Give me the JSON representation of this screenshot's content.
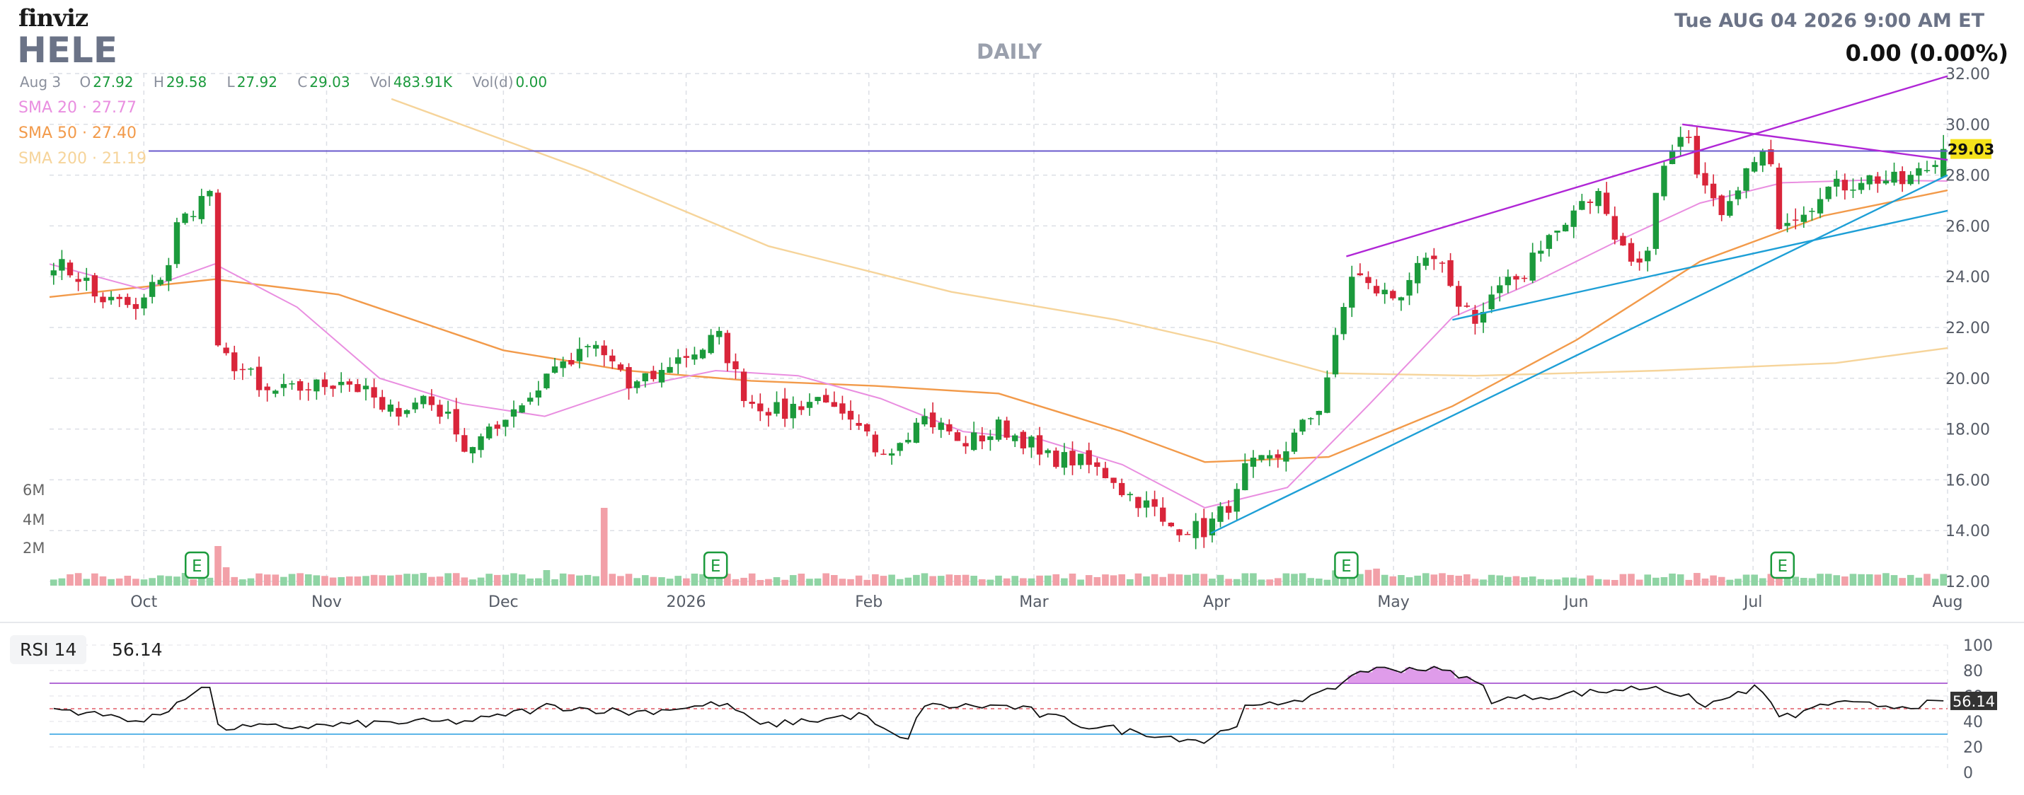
{
  "header": {
    "logo": "finviz",
    "ticker": "HELE",
    "timeframe": "DAILY",
    "datetime": "Tue AUG 04 2026 9:00 AM ET",
    "change": "0.00 (0.00%)"
  },
  "ohlc": {
    "date": "Aug 3",
    "open_label": "O",
    "open": "27.92",
    "high_label": "H",
    "high": "29.58",
    "low_label": "L",
    "low": "27.92",
    "close_label": "C",
    "close": "29.03",
    "vol_label": "Vol",
    "vol": "483.91K",
    "vold_label": "Vol(d)",
    "vold": "0.00"
  },
  "sma_labels": [
    {
      "text": "SMA 20 · 27.77",
      "color": "#e98ee0"
    },
    {
      "text": "SMA 50 · 27.40",
      "color": "#f29a4a"
    },
    {
      "text": "SMA 200 · 21.19",
      "color": "#f6d49a"
    }
  ],
  "rsi": {
    "label": "RSI 14",
    "value": "56.14"
  },
  "colors": {
    "up": "#1b9a3c",
    "down": "#d9253a",
    "vol_up": "#8fd4a4",
    "vol_down": "#f2a0a8",
    "sma20": "#e98ee0",
    "sma50": "#f29a4a",
    "sma200": "#f6d49a",
    "trend_purple": "#b026d6",
    "trend_blue": "#1e9fd6",
    "hline": "#6a5acd",
    "last_price_bg": "#f5e21b",
    "rsi_line": "#111111",
    "rsi_overbought_fill": "#d98be6"
  },
  "chart_data": [
    {
      "type": "candlestick",
      "title": "HELE",
      "ylim": [
        12,
        32
      ],
      "y_ticks": [
        "12.00",
        "14.00",
        "16.00",
        "18.00",
        "20.00",
        "22.00",
        "24.00",
        "26.00",
        "28.00",
        "30.00",
        "32.00"
      ],
      "x_tick_labels": [
        "Oct",
        "Nov",
        "Dec",
        "2026",
        "Feb",
        "Mar",
        "Apr",
        "May",
        "Jun",
        "Jul",
        "Aug"
      ],
      "last_price_label": "29.03",
      "horizontal_line_value": 28.95,
      "volume_axis_labels": [
        "6M",
        "4M",
        "2M"
      ],
      "earnings_marker": "E",
      "earnings_month_index": [
        1,
        3,
        7,
        10
      ],
      "anchors": [
        [
          "2025-09-15",
          24.6
        ],
        [
          "2025-09-22",
          23.2
        ],
        [
          "2025-09-29",
          22.6
        ],
        [
          "2025-10-06",
          26.0
        ],
        [
          "2025-10-10",
          27.4
        ],
        [
          "2025-10-13",
          21.0
        ],
        [
          "2025-10-20",
          19.4
        ],
        [
          "2025-10-27",
          19.6
        ],
        [
          "2025-11-03",
          20.0
        ],
        [
          "2025-11-10",
          18.6
        ],
        [
          "2025-11-17",
          19.3
        ],
        [
          "2025-11-24",
          17.2
        ],
        [
          "2025-12-01",
          18.6
        ],
        [
          "2025-12-08",
          20.3
        ],
        [
          "2025-12-15",
          21.3
        ],
        [
          "2025-12-22",
          19.6
        ],
        [
          "2026-01-02",
          21.2
        ],
        [
          "2026-01-06",
          21.6
        ],
        [
          "2026-01-09",
          19.4
        ],
        [
          "2026-01-16",
          18.6
        ],
        [
          "2026-01-23",
          19.3
        ],
        [
          "2026-02-02",
          16.9
        ],
        [
          "2026-02-09",
          18.6
        ],
        [
          "2026-02-16",
          17.4
        ],
        [
          "2026-02-23",
          18.1
        ],
        [
          "2026-03-02",
          16.9
        ],
        [
          "2026-03-09",
          16.7
        ],
        [
          "2026-03-16",
          15.6
        ],
        [
          "2026-03-23",
          14.2
        ],
        [
          "2026-03-30",
          14.0
        ],
        [
          "2026-04-06",
          16.4
        ],
        [
          "2026-04-13",
          17.3
        ],
        [
          "2026-04-20",
          20.1
        ],
        [
          "2026-04-23",
          24.1
        ],
        [
          "2026-04-30",
          23.2
        ],
        [
          "2026-05-07",
          24.6
        ],
        [
          "2026-05-14",
          22.4
        ],
        [
          "2026-05-21",
          23.9
        ],
        [
          "2026-05-28",
          25.8
        ],
        [
          "2026-06-04",
          27.2
        ],
        [
          "2026-06-11",
          24.4
        ],
        [
          "2026-06-18",
          29.8
        ],
        [
          "2026-06-25",
          26.3
        ],
        [
          "2026-07-02",
          28.8
        ],
        [
          "2026-07-06",
          26.2
        ],
        [
          "2026-07-13",
          27.4
        ],
        [
          "2026-07-20",
          27.9
        ],
        [
          "2026-07-27",
          27.7
        ],
        [
          "2026-08-03",
          29.03
        ]
      ],
      "sma20_points": [
        [
          "2025-09-15",
          24.5
        ],
        [
          "2025-10-01",
          23.5
        ],
        [
          "2025-10-13",
          24.5
        ],
        [
          "2025-10-27",
          22.8
        ],
        [
          "2025-11-10",
          20.0
        ],
        [
          "2025-11-24",
          19.0
        ],
        [
          "2025-12-08",
          18.5
        ],
        [
          "2025-12-22",
          19.6
        ],
        [
          "2026-01-06",
          20.3
        ],
        [
          "2026-01-20",
          20.1
        ],
        [
          "2026-02-03",
          19.2
        ],
        [
          "2026-02-17",
          17.9
        ],
        [
          "2026-03-02",
          17.6
        ],
        [
          "2026-03-16",
          16.6
        ],
        [
          "2026-03-30",
          14.9
        ],
        [
          "2026-04-13",
          15.7
        ],
        [
          "2026-04-27",
          19.0
        ],
        [
          "2026-05-11",
          22.4
        ],
        [
          "2026-05-25",
          23.8
        ],
        [
          "2026-06-08",
          25.4
        ],
        [
          "2026-06-22",
          26.9
        ],
        [
          "2026-07-06",
          27.7
        ],
        [
          "2026-07-20",
          27.8
        ],
        [
          "2026-08-03",
          27.77
        ]
      ],
      "sma50_points": [
        [
          "2025-09-15",
          23.2
        ],
        [
          "2025-10-01",
          23.6
        ],
        [
          "2025-10-13",
          23.9
        ],
        [
          "2025-11-03",
          23.3
        ],
        [
          "2025-12-01",
          21.1
        ],
        [
          "2025-12-22",
          20.3
        ],
        [
          "2026-01-12",
          19.9
        ],
        [
          "2026-02-02",
          19.7
        ],
        [
          "2026-02-23",
          19.4
        ],
        [
          "2026-03-16",
          17.9
        ],
        [
          "2026-03-30",
          16.7
        ],
        [
          "2026-04-20",
          16.9
        ],
        [
          "2026-05-11",
          18.9
        ],
        [
          "2026-06-01",
          21.5
        ],
        [
          "2026-06-22",
          24.6
        ],
        [
          "2026-07-13",
          26.4
        ],
        [
          "2026-08-03",
          27.4
        ]
      ],
      "sma200_points": [
        [
          "2025-11-12",
          31.0
        ],
        [
          "2025-12-15",
          28.2
        ],
        [
          "2026-01-15",
          25.2
        ],
        [
          "2026-02-15",
          23.4
        ],
        [
          "2026-03-15",
          22.3
        ],
        [
          "2026-04-01",
          21.4
        ],
        [
          "2026-04-20",
          20.2
        ],
        [
          "2026-05-15",
          20.1
        ],
        [
          "2026-06-15",
          20.3
        ],
        [
          "2026-07-15",
          20.6
        ],
        [
          "2026-08-03",
          21.19
        ]
      ],
      "trendlines": [
        {
          "color": "purple",
          "from": [
            "2026-04-23",
            24.8
          ],
          "to": [
            "2026-08-03",
            31.9
          ]
        },
        {
          "color": "purple",
          "from": [
            "2026-06-19",
            30.0
          ],
          "to": [
            "2026-08-03",
            28.6
          ]
        },
        {
          "color": "blue",
          "from": [
            "2026-03-31",
            13.9
          ],
          "to": [
            "2026-08-03",
            28.0
          ]
        },
        {
          "color": "blue",
          "from": [
            "2026-05-11",
            22.3
          ],
          "to": [
            "2026-08-03",
            26.6
          ]
        }
      ]
    },
    {
      "type": "line",
      "title": "RSI 14",
      "ylim": [
        0,
        100
      ],
      "y_ticks": [
        "0",
        "20",
        "40",
        "60",
        "80",
        "100"
      ],
      "levels": [
        70,
        50,
        30
      ],
      "last_value": "56.14",
      "anchors": [
        [
          "2025-09-15",
          50
        ],
        [
          "2025-09-30",
          40
        ],
        [
          "2025-10-10",
          68
        ],
        [
          "2025-10-13",
          35
        ],
        [
          "2025-10-27",
          36
        ],
        [
          "2025-11-10",
          39
        ],
        [
          "2025-11-24",
          40
        ],
        [
          "2025-12-08",
          52
        ],
        [
          "2025-12-22",
          47
        ],
        [
          "2026-01-06",
          54
        ],
        [
          "2026-01-13",
          37
        ],
        [
          "2026-01-30",
          45
        ],
        [
          "2026-02-06",
          24
        ],
        [
          "2026-02-10",
          52
        ],
        [
          "2026-02-24",
          52
        ],
        [
          "2026-03-09",
          37
        ],
        [
          "2026-03-30",
          24
        ],
        [
          "2026-04-06",
          50
        ],
        [
          "2026-04-20",
          63
        ],
        [
          "2026-04-24",
          80
        ],
        [
          "2026-05-05",
          82
        ],
        [
          "2026-05-12",
          77
        ],
        [
          "2026-05-18",
          57
        ],
        [
          "2026-06-01",
          62
        ],
        [
          "2026-06-15",
          68
        ],
        [
          "2026-06-22",
          52
        ],
        [
          "2026-07-01",
          66
        ],
        [
          "2026-07-06",
          42
        ],
        [
          "2026-07-13",
          54
        ],
        [
          "2026-07-27",
          52
        ],
        [
          "2026-08-03",
          56.14
        ]
      ]
    }
  ]
}
